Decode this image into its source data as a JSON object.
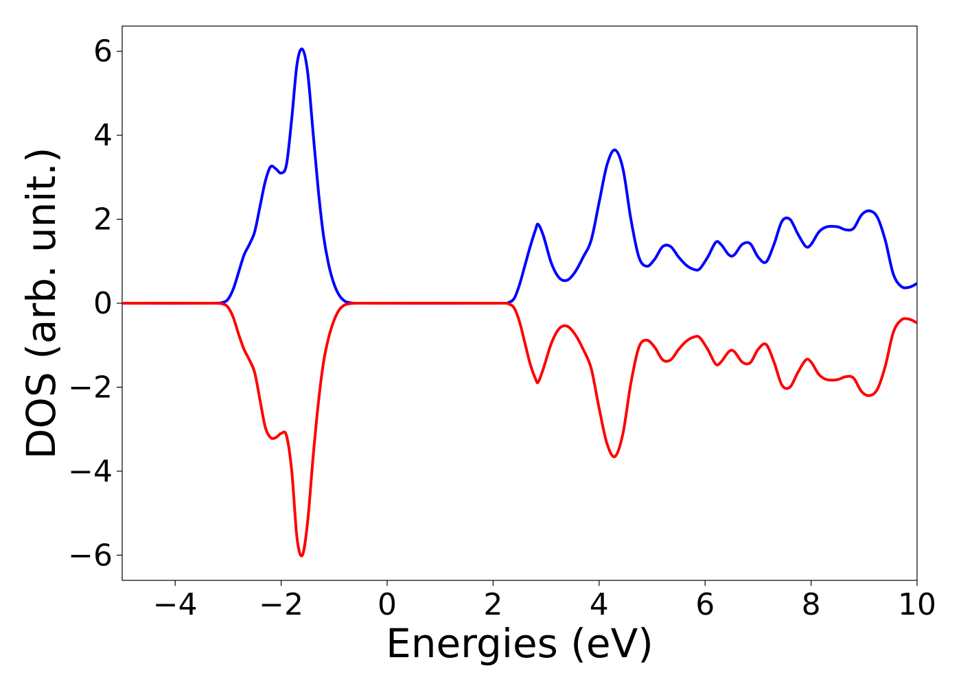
{
  "chart_data": {
    "type": "line",
    "title": "",
    "xlabel": "Energies (eV)",
    "ylabel": "DOS (arb. unit.)",
    "xlim": [
      -5,
      10
    ],
    "ylim": [
      -6.6,
      6.6
    ],
    "xticks": [
      -4,
      -2,
      0,
      2,
      4,
      6,
      8,
      10
    ],
    "xtick_labels": [
      "−4",
      "−2",
      "0",
      "2",
      "4",
      "6",
      "8",
      "10"
    ],
    "yticks": [
      6,
      4,
      2,
      0,
      -2,
      -4,
      -6
    ],
    "ytick_labels": [
      "6",
      "4",
      "2",
      "0",
      "−2",
      "−4",
      "−6"
    ],
    "grid": false,
    "legend": "none",
    "series": [
      {
        "color": "#0000ff",
        "x": [
          -5,
          -3.3,
          -3.1,
          -3.0,
          -2.9,
          -2.8,
          -2.7,
          -2.6,
          -2.5,
          -2.4,
          -2.3,
          -2.2,
          -2.1,
          -2.0,
          -1.9,
          -1.8,
          -1.7,
          -1.6,
          -1.5,
          -1.4,
          -1.3,
          -1.2,
          -1.1,
          -1.0,
          -0.9,
          -0.8,
          -0.7,
          -0.6,
          -0.5,
          2.2,
          2.3,
          2.4,
          2.5,
          2.6,
          2.7,
          2.8,
          2.85,
          2.95,
          3.1,
          3.25,
          3.4,
          3.55,
          3.7,
          3.85,
          4.0,
          4.15,
          4.3,
          4.45,
          4.6,
          4.75,
          4.9,
          5.05,
          5.2,
          5.35,
          5.5,
          5.65,
          5.8,
          5.9,
          6.05,
          6.2,
          6.3,
          6.45,
          6.55,
          6.7,
          6.85,
          7.0,
          7.15,
          7.3,
          7.45,
          7.6,
          7.75,
          7.9,
          8.0,
          8.15,
          8.3,
          8.5,
          8.65,
          8.8,
          8.95,
          9.1,
          9.25,
          9.4,
          9.55,
          9.7,
          9.85,
          10.0
        ],
        "y": [
          0,
          0,
          0.02,
          0.1,
          0.35,
          0.75,
          1.15,
          1.4,
          1.7,
          2.3,
          2.9,
          3.25,
          3.2,
          3.1,
          3.3,
          4.4,
          5.7,
          6.05,
          5.5,
          4.1,
          2.7,
          1.6,
          0.9,
          0.45,
          0.18,
          0.05,
          0.01,
          0.0,
          0,
          0,
          0.02,
          0.12,
          0.45,
          0.9,
          1.35,
          1.75,
          1.88,
          1.6,
          0.95,
          0.6,
          0.55,
          0.75,
          1.1,
          1.5,
          2.4,
          3.3,
          3.65,
          3.2,
          2.0,
          1.1,
          0.88,
          1.05,
          1.35,
          1.35,
          1.1,
          0.9,
          0.8,
          0.82,
          1.1,
          1.45,
          1.4,
          1.15,
          1.15,
          1.4,
          1.42,
          1.1,
          0.98,
          1.4,
          1.95,
          2.0,
          1.65,
          1.35,
          1.4,
          1.7,
          1.82,
          1.82,
          1.75,
          1.78,
          2.1,
          2.2,
          2.05,
          1.5,
          0.7,
          0.4,
          0.38,
          0.47
        ]
      },
      {
        "color": "#ff0000",
        "x": [
          -5,
          -3.3,
          -3.1,
          -3.0,
          -2.9,
          -2.8,
          -2.7,
          -2.6,
          -2.5,
          -2.4,
          -2.3,
          -2.2,
          -2.1,
          -2.0,
          -1.9,
          -1.8,
          -1.7,
          -1.6,
          -1.5,
          -1.4,
          -1.3,
          -1.2,
          -1.1,
          -1.0,
          -0.9,
          -0.8,
          -0.7,
          -0.6,
          -0.5,
          2.2,
          2.3,
          2.4,
          2.5,
          2.6,
          2.7,
          2.8,
          2.85,
          2.95,
          3.1,
          3.25,
          3.4,
          3.55,
          3.7,
          3.85,
          4.0,
          4.15,
          4.3,
          4.45,
          4.6,
          4.75,
          4.9,
          5.05,
          5.2,
          5.35,
          5.5,
          5.65,
          5.8,
          5.9,
          6.05,
          6.2,
          6.3,
          6.45,
          6.55,
          6.7,
          6.85,
          7.0,
          7.15,
          7.3,
          7.45,
          7.6,
          7.75,
          7.9,
          8.0,
          8.15,
          8.3,
          8.5,
          8.65,
          8.8,
          8.95,
          9.1,
          9.25,
          9.4,
          9.55,
          9.7,
          9.85,
          10.0
        ],
        "y": [
          0,
          0,
          -0.02,
          -0.1,
          -0.35,
          -0.75,
          -1.1,
          -1.35,
          -1.65,
          -2.3,
          -2.95,
          -3.2,
          -3.2,
          -3.1,
          -3.15,
          -4.0,
          -5.6,
          -6.0,
          -5.2,
          -3.7,
          -2.4,
          -1.4,
          -0.8,
          -0.4,
          -0.15,
          -0.04,
          -0.01,
          0.0,
          0,
          0,
          -0.02,
          -0.12,
          -0.45,
          -0.95,
          -1.45,
          -1.8,
          -1.88,
          -1.55,
          -0.95,
          -0.6,
          -0.55,
          -0.75,
          -1.1,
          -1.55,
          -2.5,
          -3.35,
          -3.65,
          -3.1,
          -1.9,
          -1.05,
          -0.88,
          -1.05,
          -1.35,
          -1.35,
          -1.1,
          -0.9,
          -0.8,
          -0.82,
          -1.1,
          -1.45,
          -1.4,
          -1.15,
          -1.15,
          -1.4,
          -1.42,
          -1.1,
          -0.98,
          -1.4,
          -1.95,
          -2.0,
          -1.65,
          -1.35,
          -1.4,
          -1.7,
          -1.82,
          -1.82,
          -1.75,
          -1.78,
          -2.1,
          -2.2,
          -2.05,
          -1.5,
          -0.7,
          -0.4,
          -0.38,
          -0.47
        ]
      }
    ]
  }
}
